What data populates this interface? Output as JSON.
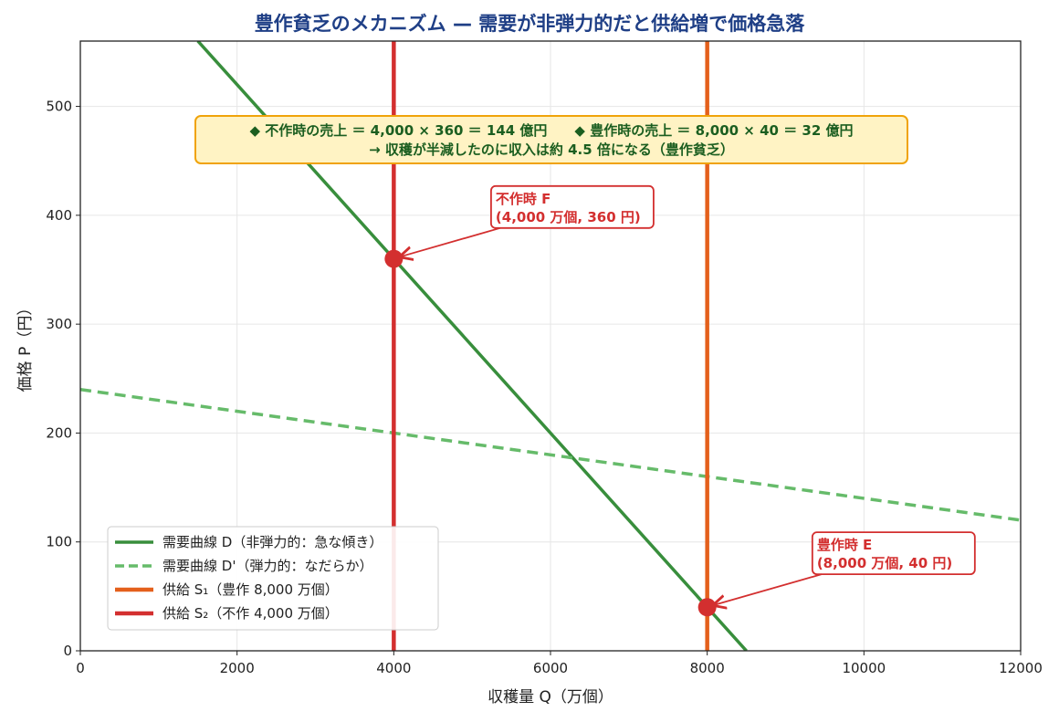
{
  "chart_data": {
    "type": "line",
    "title": "豊作貧乏のメカニズム — 需要が非弾力的だと供給増で価格急落",
    "xlabel": "収穫量 Q（万個）",
    "ylabel": "価格 P（円）",
    "xlim": [
      0,
      12000
    ],
    "ylim": [
      0,
      560
    ],
    "xticks": [
      0,
      2000,
      4000,
      6000,
      8000,
      10000,
      12000
    ],
    "yticks": [
      0,
      100,
      200,
      300,
      400,
      500
    ],
    "grid": true,
    "legend_position": "lower-left",
    "series": [
      {
        "name": "需要曲線 D（非弾力的：急な傾き）",
        "style": "solid",
        "color": "#388e3c",
        "x": [
          1500,
          8500
        ],
        "y": [
          560,
          0
        ]
      },
      {
        "name": "需要曲線 D'（弾力的：なだらか）",
        "style": "dashed",
        "color": "#66bb6a",
        "x": [
          0,
          12000
        ],
        "y": [
          240,
          120
        ]
      },
      {
        "name": "供給 S₁（豊作 8,000 万個）",
        "style": "vertical",
        "color": "#e4601c",
        "x": [
          8000,
          8000
        ],
        "y": [
          0,
          560
        ]
      },
      {
        "name": "供給 S₂（不作 4,000 万個）",
        "style": "vertical",
        "color": "#d32f2f",
        "x": [
          4000,
          4000
        ],
        "y": [
          0,
          560
        ]
      }
    ],
    "points": [
      {
        "x": 4000,
        "y": 360,
        "label_lines": [
          "不作時 F",
          "(4,000 万個, 360 円)"
        ],
        "label_at": [
          5300,
          395
        ]
      },
      {
        "x": 8000,
        "y": 40,
        "label_lines": [
          "豊作時 E",
          "(8,000 万個, 40 円)"
        ],
        "label_at": [
          9400,
          77
        ]
      }
    ],
    "info_box": {
      "line1": "◆ 不作時の売上 ＝ 4,000 × 360 ＝ 144 億円　　◆ 豊作時の売上 ＝ 8,000 × 40 ＝ 32 億円",
      "line2": "→ 収穫が半減したのに収入は約 4.5 倍になる（豊作貧乏）"
    },
    "colors": {
      "title": "#1f3f86",
      "point": "#d32f2f",
      "info_text": "#1b5e20",
      "info_bg": "#fff3c4",
      "info_border": "#f0a30a"
    }
  }
}
